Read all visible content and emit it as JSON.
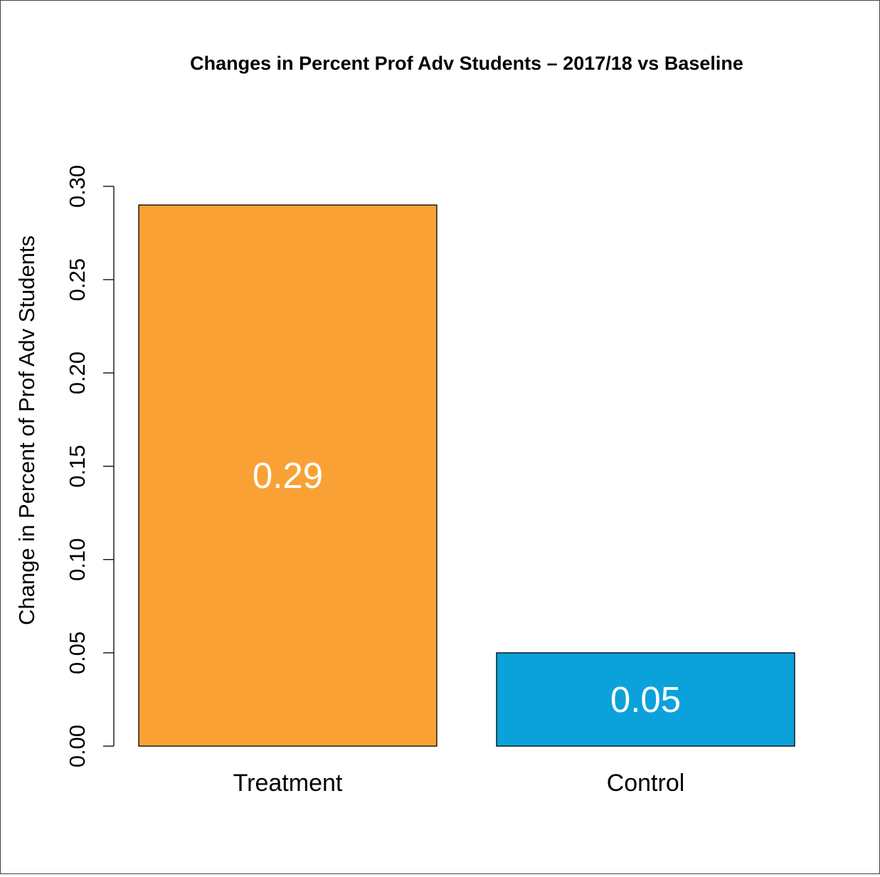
{
  "chart_data": {
    "type": "bar",
    "title": "Changes in Percent Prof Adv Students – 2017/18 vs Baseline",
    "xlabel": "",
    "ylabel": "Change in Percent of Prof Adv Students",
    "categories": [
      "Treatment",
      "Control"
    ],
    "values": [
      0.29,
      0.05
    ],
    "data_labels": [
      "0.29",
      "0.05"
    ],
    "colors": [
      "#F9A134",
      "#0BA2DB"
    ],
    "label_color": "#FFFFFF",
    "ylim": [
      0,
      0.3
    ],
    "yticks": [
      0.0,
      0.05,
      0.1,
      0.15,
      0.2,
      0.25,
      0.3
    ],
    "ytick_labels": [
      "0.00",
      "0.05",
      "0.10",
      "0.15",
      "0.20",
      "0.25",
      "0.30"
    ],
    "grid": false,
    "legend": "none"
  }
}
